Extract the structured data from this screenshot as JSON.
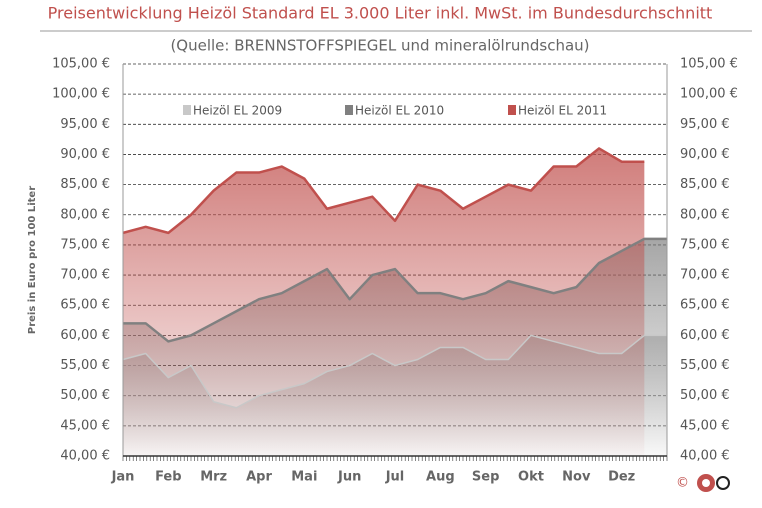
{
  "chart_data": {
    "type": "area",
    "title": "Preisentwicklung Heizöl Standard EL 3.000 Liter inkl. MwSt. im Bundesdurchschnitt",
    "subtitle": "(Quelle: BRENNSTOFFSPIEGEL  und mineralölrundschau)",
    "y_label": "Preis in Euro pro 100 Liter",
    "copyright": "©",
    "categories": [
      "Jan",
      null,
      "Feb",
      null,
      "Mrz",
      null,
      "Apr",
      null,
      "Mai",
      null,
      "Jun",
      null,
      "Jul",
      null,
      "Aug",
      null,
      "Sep",
      null,
      "Okt",
      null,
      "Nov",
      null,
      "Dez",
      null
    ],
    "series": [
      {
        "name": "Heizöl EL 2009",
        "color": "#c8c8c8",
        "values": [
          56,
          57,
          53,
          55,
          49,
          48,
          50,
          51,
          52,
          54,
          55,
          57,
          55,
          56,
          58,
          58,
          56,
          56,
          60,
          59,
          58,
          57,
          57,
          60
        ]
      },
      {
        "name": "Heizöl EL 2010",
        "color": "#808080",
        "values": [
          62,
          62,
          59,
          60,
          62,
          64,
          66,
          67,
          69,
          71,
          66,
          70,
          71,
          67,
          67,
          66,
          67,
          69,
          68,
          67,
          68,
          72,
          74,
          76
        ]
      },
      {
        "name": "Heizöl EL 2011",
        "color": "#c0504d",
        "values": [
          77,
          78,
          77,
          80,
          84,
          87,
          87,
          88,
          86,
          81,
          82,
          83,
          79,
          85,
          84,
          81,
          83,
          85,
          84,
          88,
          88,
          91,
          88.8,
          null
        ]
      }
    ],
    "ylim": [
      40,
      105
    ],
    "yticks": [
      {
        "value": 40,
        "label": "40,00 €"
      },
      {
        "value": 45,
        "label": "45,00 €"
      },
      {
        "value": 50,
        "label": "50,00 €"
      },
      {
        "value": 55,
        "label": "55,00 €"
      },
      {
        "value": 60,
        "label": "60,00 €"
      },
      {
        "value": 65,
        "label": "65,00 €"
      },
      {
        "value": 70,
        "label": "70,00 €"
      },
      {
        "value": 75,
        "label": "75,00 €"
      },
      {
        "value": 80,
        "label": "80,00 €"
      },
      {
        "value": 85,
        "label": "85,00 €"
      },
      {
        "value": 90,
        "label": "90,00 €"
      },
      {
        "value": 95,
        "label": "95,00 €"
      },
      {
        "value": 100,
        "label": "100,00 €"
      },
      {
        "value": 105,
        "label": "105,00 €"
      }
    ],
    "y2lim": [
      40,
      105
    ],
    "y2ticks": [
      {
        "value": 40,
        "label": "40,00 €"
      },
      {
        "value": 45,
        "label": "45,00 €"
      },
      {
        "value": 50,
        "label": "50,00 €"
      },
      {
        "value": 55,
        "label": "55,00 €"
      },
      {
        "value": 60,
        "label": "60,00 €"
      },
      {
        "value": 65,
        "label": "65,00 €"
      },
      {
        "value": 70,
        "label": "70,00 €"
      },
      {
        "value": 75,
        "label": "75,00 €"
      },
      {
        "value": 80,
        "label": "80,00 €"
      },
      {
        "value": 85,
        "label": "85,00 €"
      },
      {
        "value": 90,
        "label": "90,00 €"
      },
      {
        "value": 95,
        "label": "95,00 €"
      },
      {
        "value": 100,
        "label": "100,00 €"
      },
      {
        "value": 105,
        "label": "105,00 €"
      }
    ],
    "grid": true
  }
}
